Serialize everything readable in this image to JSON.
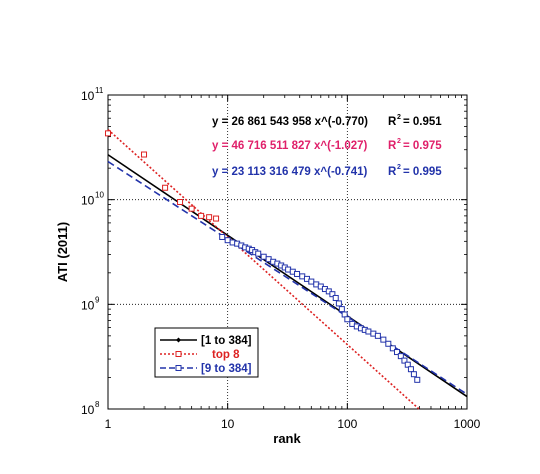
{
  "chart_data": {
    "type": "scatter",
    "title": "",
    "xlabel": "rank",
    "ylabel": "ATI (2011)",
    "x_scale": "log",
    "y_scale": "log",
    "xlim": [
      1,
      1000
    ],
    "ylim": [
      100000000,
      100000000000
    ],
    "x_ticks": [
      "1",
      "10",
      "100",
      "1000"
    ],
    "y_ticks": [
      {
        "base": "10",
        "exp": "8"
      },
      {
        "base": "10",
        "exp": "9"
      },
      {
        "base": "10",
        "exp": "10"
      },
      {
        "base": "10",
        "exp": "11"
      }
    ],
    "grid": "dotted at decades",
    "legend_position": "bottom-left",
    "series": [
      {
        "name": "[1 to 384]",
        "color": "#000000",
        "line_style": "solid",
        "marker": "small-diamond",
        "fit": {
          "a": 26861543958,
          "b": -0.77,
          "r2": 0.951,
          "x_range": [
            1,
            1000
          ]
        }
      },
      {
        "name": "top 8",
        "color": "#dd2222",
        "line_style": "dotted",
        "marker": "open-square",
        "fit": {
          "a": 46716511827,
          "b": -1.027,
          "r2": 0.975,
          "x_range": [
            1,
            1000
          ]
        },
        "points": [
          [
            1,
            43000000000
          ],
          [
            2,
            27000000000
          ],
          [
            3,
            13000000000
          ],
          [
            4,
            9500000000
          ],
          [
            5,
            8200000000
          ],
          [
            6,
            7000000000
          ],
          [
            7,
            6800000000
          ],
          [
            8,
            6600000000
          ]
        ]
      },
      {
        "name": "[9 to 384]",
        "color": "#2233aa",
        "line_style": "dashed",
        "marker": "open-square",
        "fit": {
          "a": 23113316479,
          "b": -0.741,
          "r2": 0.995,
          "x_range": [
            1,
            1000
          ]
        },
        "points": [
          [
            9,
            4400000000
          ],
          [
            10,
            4100000000
          ],
          [
            11,
            3900000000
          ],
          [
            12,
            3800000000
          ],
          [
            13,
            3650000000
          ],
          [
            14,
            3500000000
          ],
          [
            15,
            3400000000
          ],
          [
            16,
            3300000000
          ],
          [
            17,
            3150000000
          ],
          [
            18,
            3050000000
          ],
          [
            20,
            2850000000
          ],
          [
            22,
            2700000000
          ],
          [
            24,
            2550000000
          ],
          [
            26,
            2450000000
          ],
          [
            28,
            2350000000
          ],
          [
            30,
            2250000000
          ],
          [
            32,
            2150000000
          ],
          [
            35,
            2050000000
          ],
          [
            38,
            1950000000
          ],
          [
            42,
            1850000000
          ],
          [
            46,
            1750000000
          ],
          [
            50,
            1650000000
          ],
          [
            55,
            1550000000
          ],
          [
            60,
            1480000000
          ],
          [
            65,
            1400000000
          ],
          [
            70,
            1330000000
          ],
          [
            75,
            1250000000
          ],
          [
            80,
            1150000000
          ],
          [
            85,
            1020000000
          ],
          [
            90,
            900000000
          ],
          [
            95,
            800000000
          ],
          [
            100,
            720000000
          ],
          [
            110,
            650000000
          ],
          [
            120,
            615000000
          ],
          [
            130,
            590000000
          ],
          [
            140,
            570000000
          ],
          [
            150,
            550000000
          ],
          [
            165,
            525000000
          ],
          [
            180,
            500000000
          ],
          [
            200,
            460000000
          ],
          [
            220,
            420000000
          ],
          [
            240,
            380000000
          ],
          [
            260,
            350000000
          ],
          [
            280,
            320000000
          ],
          [
            300,
            290000000
          ],
          [
            320,
            265000000
          ],
          [
            340,
            240000000
          ],
          [
            360,
            215000000
          ],
          [
            384,
            190000000
          ]
        ]
      }
    ],
    "annotations": [
      {
        "text": "y = 26 861 543 958 x^(-0.770)",
        "r2_label": "R",
        "r2_exp": "2",
        "r2_value": "= 0.951",
        "color": "#000000"
      },
      {
        "text": "y = 46 716 511 827 x^(-1.027)",
        "r2_label": "R",
        "r2_exp": "2",
        "r2_value": "= 0.975",
        "color": "#e0206a"
      },
      {
        "text": "y = 23 113 316 479 x^(-0.741)",
        "r2_label": "R",
        "r2_exp": "2",
        "r2_value": "= 0.995",
        "color": "#2233aa"
      }
    ]
  }
}
